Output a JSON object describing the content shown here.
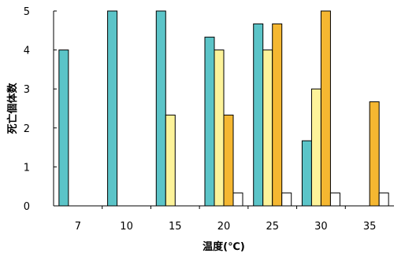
{
  "chart_data": {
    "type": "bar",
    "xlabel": "温度(℃)",
    "ylabel": "死亡個体数",
    "ylim": [
      0,
      5
    ],
    "yticks": [
      "0",
      "1",
      "2",
      "3",
      "4",
      "5"
    ],
    "categories": [
      "7",
      "10",
      "15",
      "20",
      "25",
      "30",
      "35"
    ],
    "grid": false,
    "legend": "none",
    "series": [
      {
        "color": "#5bc4c8",
        "values": [
          4,
          5,
          5,
          4.33,
          4.67,
          1.67,
          0
        ]
      },
      {
        "color": "#fdf39a",
        "values": [
          0,
          0,
          2.33,
          4,
          4,
          3,
          0
        ]
      },
      {
        "color": "#f5b731",
        "values": [
          0,
          0,
          0,
          2.33,
          4.67,
          5,
          2.67
        ]
      },
      {
        "color": "#ffffff",
        "values": [
          0,
          0,
          0,
          0.33,
          0.33,
          0.33,
          0.33
        ]
      }
    ]
  }
}
